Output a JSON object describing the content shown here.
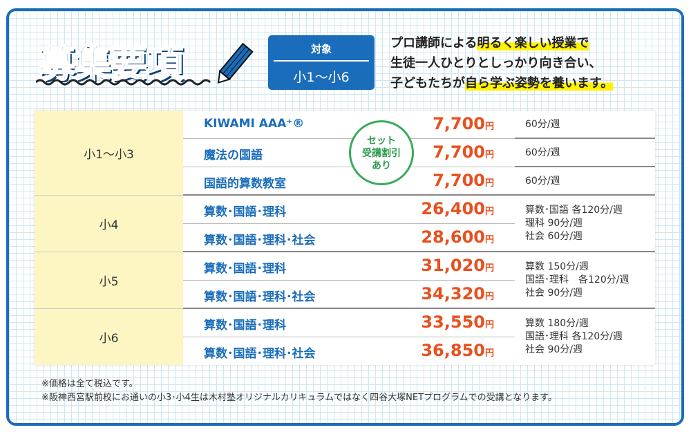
{
  "header": {
    "title": "募集要項",
    "target_label": "対象",
    "target_value": "小1〜小6",
    "intro": {
      "l1a": "プロ講師による",
      "l1b": "明るく楽しい授業で",
      "l2": "生徒一人ひとりとしっかり向き合い、",
      "l3a": "子どもたちが",
      "l3b": "自ら学ぶ姿勢を養います。"
    }
  },
  "badge": {
    "l1": "セット",
    "l2": "受講割引",
    "l3": "あり"
  },
  "grades": [
    "小1〜小3",
    "小4",
    "小5",
    "小6"
  ],
  "rows": [
    {
      "course": "KIWAMI AAA⁺®",
      "price": "7,700",
      "unit": "円",
      "time": "60分/週"
    },
    {
      "course": "魔法の国語",
      "price": "7,700",
      "unit": "円",
      "time": "60分/週"
    },
    {
      "course": "国語的算数教室",
      "price": "7,700",
      "unit": "円",
      "time": "60分/週"
    },
    {
      "course": "算数･国語･理科",
      "price": "26,400",
      "unit": "円"
    },
    {
      "course": "算数･国語･理科･社会",
      "price": "28,600",
      "unit": "円"
    },
    {
      "course": "算数･国語･理科",
      "price": "31,020",
      "unit": "円"
    },
    {
      "course": "算数･国語･理科･社会",
      "price": "34,320",
      "unit": "円"
    },
    {
      "course": "算数･国語･理科",
      "price": "33,550",
      "unit": "円"
    },
    {
      "course": "算数･国語･理科･社会",
      "price": "36,850",
      "unit": "円"
    }
  ],
  "times": {
    "g4": [
      "算数･国語 各120分/週",
      "理科 90分/週",
      "社会 60分/週"
    ],
    "g5": [
      "算数 150分/週",
      "国語･理科　各120分/週",
      "社会 90分/週"
    ],
    "g6": [
      "算数 180分/週",
      "国語･理科 各120分/週",
      "社会 90分/週"
    ]
  },
  "notes": [
    "※価格は全て税込です。",
    "※阪神西宮駅前校にお通いの小3･小4生は木村塾オリジナルカリキュラムではなく四谷大塚NETプログラムでの受講となります。"
  ],
  "colors": {
    "brand": "#1a6dbb",
    "price": "#e8501e",
    "highlight": "#fff200",
    "grade_bg": "#fdf6c3",
    "badge": "#3aaa5c"
  }
}
